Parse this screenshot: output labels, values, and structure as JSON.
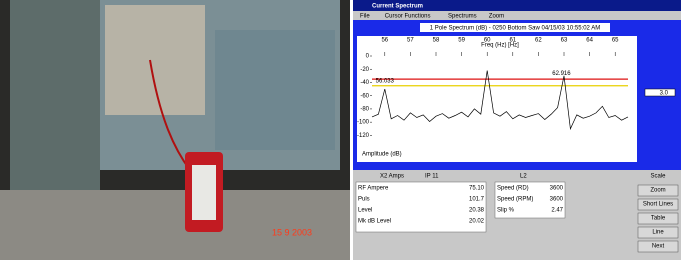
{
  "photo": {
    "date_stamp": "15 9 2003"
  },
  "window": {
    "title": "Current Spectrum",
    "menu": [
      "File",
      "Cursor Functions",
      "Spectrums",
      "Zoom"
    ]
  },
  "chart_data": {
    "type": "line",
    "caption": "1 Pole Spectrum (dB) - 0250 Bottom Saw 04/15/03 10:55:02 AM",
    "title": "Freq (Hz) [Hz]",
    "ylabel": "Amplitude (dB)",
    "xlim": [
      55.5,
      65.5
    ],
    "xticks": [
      56,
      57,
      58,
      59,
      60,
      61,
      62,
      63,
      64,
      65
    ],
    "ylim": [
      -130,
      0
    ],
    "yticks": [
      0,
      -20,
      -40,
      -60,
      -80,
      -100,
      -120
    ],
    "hlines": [
      {
        "value": -35,
        "color": "#dd1111"
      },
      {
        "value": -45,
        "color": "#e8d000"
      }
    ],
    "annotations": [
      {
        "text": "56.033",
        "x": 56,
        "y": -38
      },
      {
        "text": "62.916",
        "x": 62.9,
        "y": -26
      }
    ],
    "series": [
      {
        "color": "#000000",
        "x": [
          55.5,
          55.75,
          56,
          56.25,
          56.5,
          56.75,
          57,
          57.25,
          57.5,
          57.75,
          58,
          58.25,
          58.5,
          58.75,
          59,
          59.25,
          59.5,
          59.75,
          60,
          60.25,
          60.5,
          60.75,
          61,
          61.25,
          61.5,
          61.75,
          62,
          62.25,
          62.5,
          62.75,
          63,
          63.25,
          63.5,
          63.75,
          64,
          64.25,
          64.5,
          64.75,
          65,
          65.25,
          65.5
        ],
        "values": [
          -92,
          -88,
          -50,
          -95,
          -90,
          -97,
          -86,
          -93,
          -89,
          -99,
          -91,
          -87,
          -94,
          -90,
          -85,
          -92,
          -80,
          -88,
          -22,
          -86,
          -91,
          -84,
          -95,
          -89,
          -93,
          -90,
          -87,
          -96,
          -88,
          -78,
          -30,
          -110,
          -89,
          -94,
          -91,
          -86,
          -76,
          -93,
          -90,
          -97,
          -92
        ]
      }
    ],
    "slider_value": "3.0"
  },
  "panel": {
    "header": [
      "X2 Amps",
      "IP 11",
      "L2"
    ],
    "left_rows": [
      [
        "RF Ampere",
        "75.10"
      ],
      [
        "Puls",
        "101.7"
      ],
      [
        "Level",
        "20.38"
      ],
      [
        "Mk dB Level",
        "20.02"
      ]
    ],
    "right_rows": [
      [
        "Speed (RD)",
        "3600"
      ],
      [
        "Speed (RPM)",
        "3600"
      ],
      [
        "Slip %",
        "2.47"
      ]
    ],
    "buttons": [
      "Scale",
      "Zoom",
      "Short Lines",
      "Table",
      "Line",
      "Next"
    ]
  }
}
